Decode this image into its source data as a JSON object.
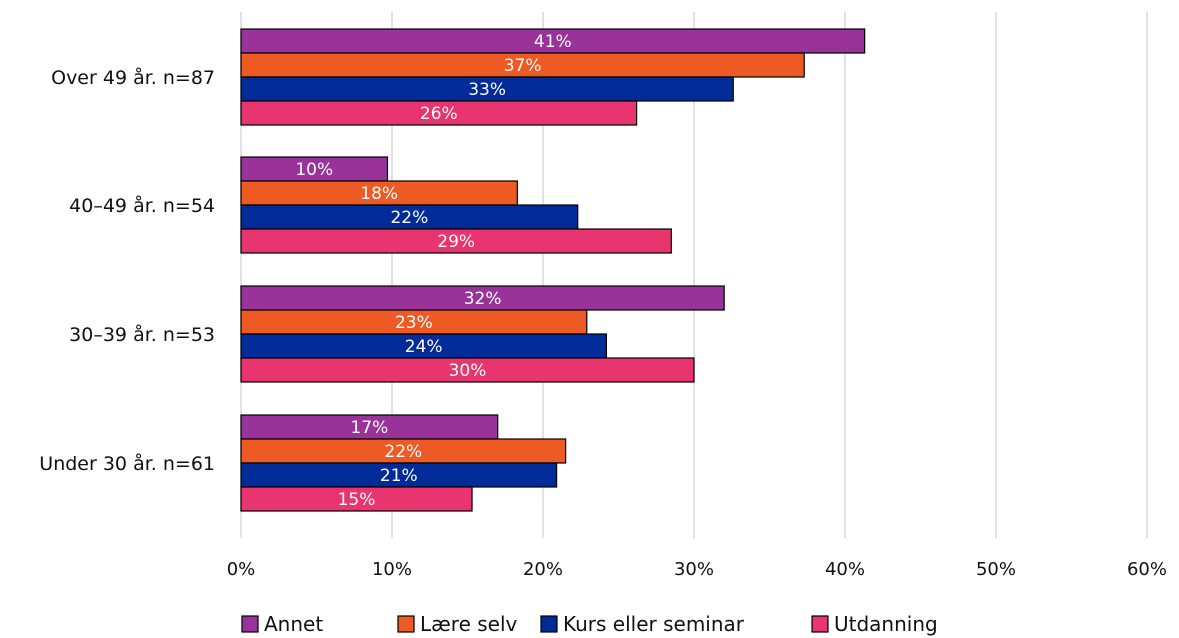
{
  "chart_data": {
    "type": "bar",
    "orientation": "horizontal",
    "categories": [
      "Over 49 år. n=87",
      "40–49 år. n=54",
      "30–39 år. n=53",
      "Under 30 år. n=61"
    ],
    "series": [
      {
        "name": "Annet",
        "color": "#993399",
        "values": [
          41.3,
          9.7,
          32.0,
          17.0
        ],
        "labels": [
          "41%",
          "10%",
          "32%",
          "17%"
        ]
      },
      {
        "name": "Lære selv",
        "color": "#ee5a24",
        "values": [
          37.3,
          18.3,
          22.9,
          21.5
        ],
        "labels": [
          "37%",
          "18%",
          "23%",
          "22%"
        ]
      },
      {
        "name": "Kurs eller seminar",
        "color": "#002b99",
        "values": [
          32.6,
          22.3,
          24.2,
          20.9
        ],
        "labels": [
          "33%",
          "22%",
          "24%",
          "21%"
        ]
      },
      {
        "name": "Utdanning",
        "color": "#e8356f",
        "values": [
          26.2,
          28.5,
          30.0,
          15.3
        ],
        "labels": [
          "26%",
          "29%",
          "30%",
          "15%"
        ]
      }
    ],
    "xlim": [
      0,
      60
    ],
    "xticks": [
      "0%",
      "10%",
      "20%",
      "30%",
      "40%",
      "50%",
      "60%"
    ],
    "grid": true,
    "legend_position": "bottom"
  }
}
